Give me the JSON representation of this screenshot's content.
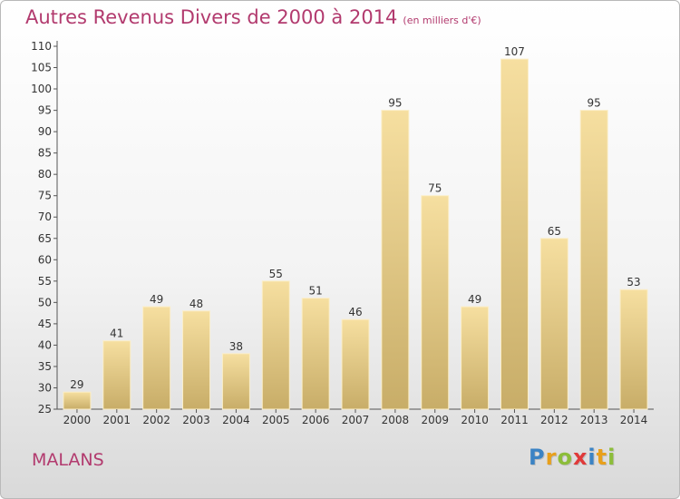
{
  "title": "Autres Revenus Divers de 2000 à 2014",
  "unit": "(en milliers d'€)",
  "commune": "MALANS",
  "logo": {
    "letters": [
      "P",
      "r",
      "o",
      "x",
      "i",
      "t",
      "i"
    ],
    "colors": [
      "#3b83c4",
      "#e8a01c",
      "#8cbd3a",
      "#e03a3a",
      "#3b83c4",
      "#e8a01c",
      "#8cbd3a"
    ]
  },
  "colors": {
    "title": "#b23a6e",
    "bar_light": "#f6dfa0",
    "bar_dark": "#c8ad68"
  },
  "chart_data": {
    "type": "bar",
    "categories": [
      "2000",
      "2001",
      "2002",
      "2003",
      "2004",
      "2005",
      "2006",
      "2007",
      "2008",
      "2009",
      "2010",
      "2011",
      "2012",
      "2013",
      "2014"
    ],
    "values": [
      29,
      41,
      49,
      48,
      38,
      55,
      51,
      46,
      95,
      75,
      49,
      107,
      65,
      95,
      53
    ],
    "ylim": [
      25,
      110
    ],
    "yticks": [
      25,
      30,
      35,
      40,
      45,
      50,
      55,
      60,
      65,
      70,
      75,
      80,
      85,
      90,
      95,
      100,
      105,
      110
    ],
    "grid": false,
    "data_labels": true
  }
}
